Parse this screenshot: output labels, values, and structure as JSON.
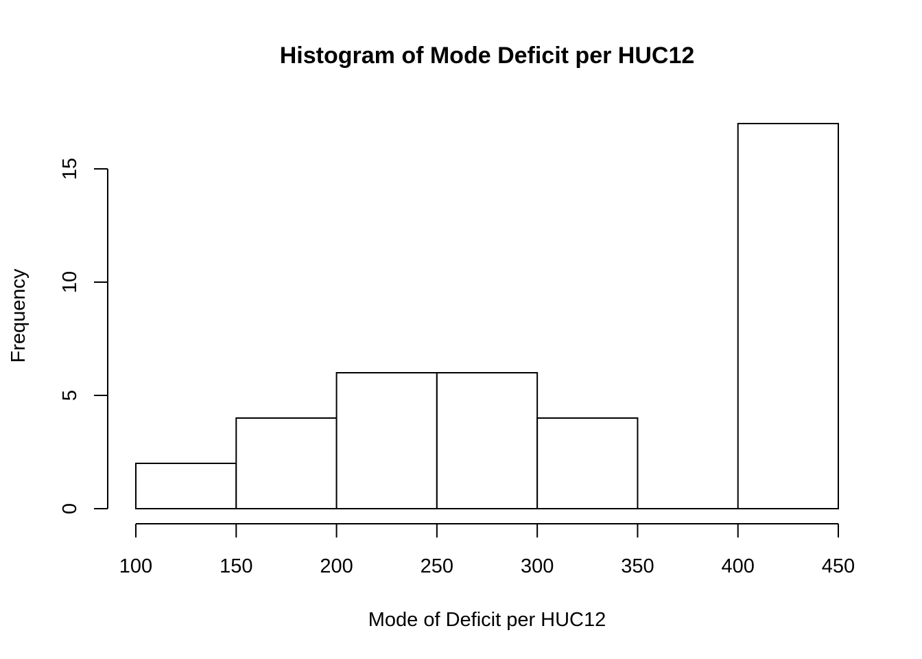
{
  "chart_data": {
    "type": "bar",
    "title": "Histogram of Mode Deficit per HUC12",
    "xlabel": "Mode of Deficit per HUC12",
    "ylabel": "Frequency",
    "bins": [
      {
        "from": 100,
        "to": 150,
        "count": 2
      },
      {
        "from": 150,
        "to": 200,
        "count": 4
      },
      {
        "from": 200,
        "to": 250,
        "count": 6
      },
      {
        "from": 250,
        "to": 300,
        "count": 6
      },
      {
        "from": 300,
        "to": 350,
        "count": 4
      },
      {
        "from": 350,
        "to": 400,
        "count": 0
      },
      {
        "from": 400,
        "to": 450,
        "count": 17
      }
    ],
    "xlim": [
      100,
      450
    ],
    "ylim": [
      0,
      15
    ],
    "xticks": [
      "100",
      "150",
      "200",
      "250",
      "300",
      "350",
      "400",
      "450"
    ],
    "yticks": [
      "0",
      "5",
      "10",
      "15"
    ],
    "grid": false,
    "colors": {
      "bar_fill": "#ffffff",
      "bar_stroke": "#000000"
    }
  }
}
